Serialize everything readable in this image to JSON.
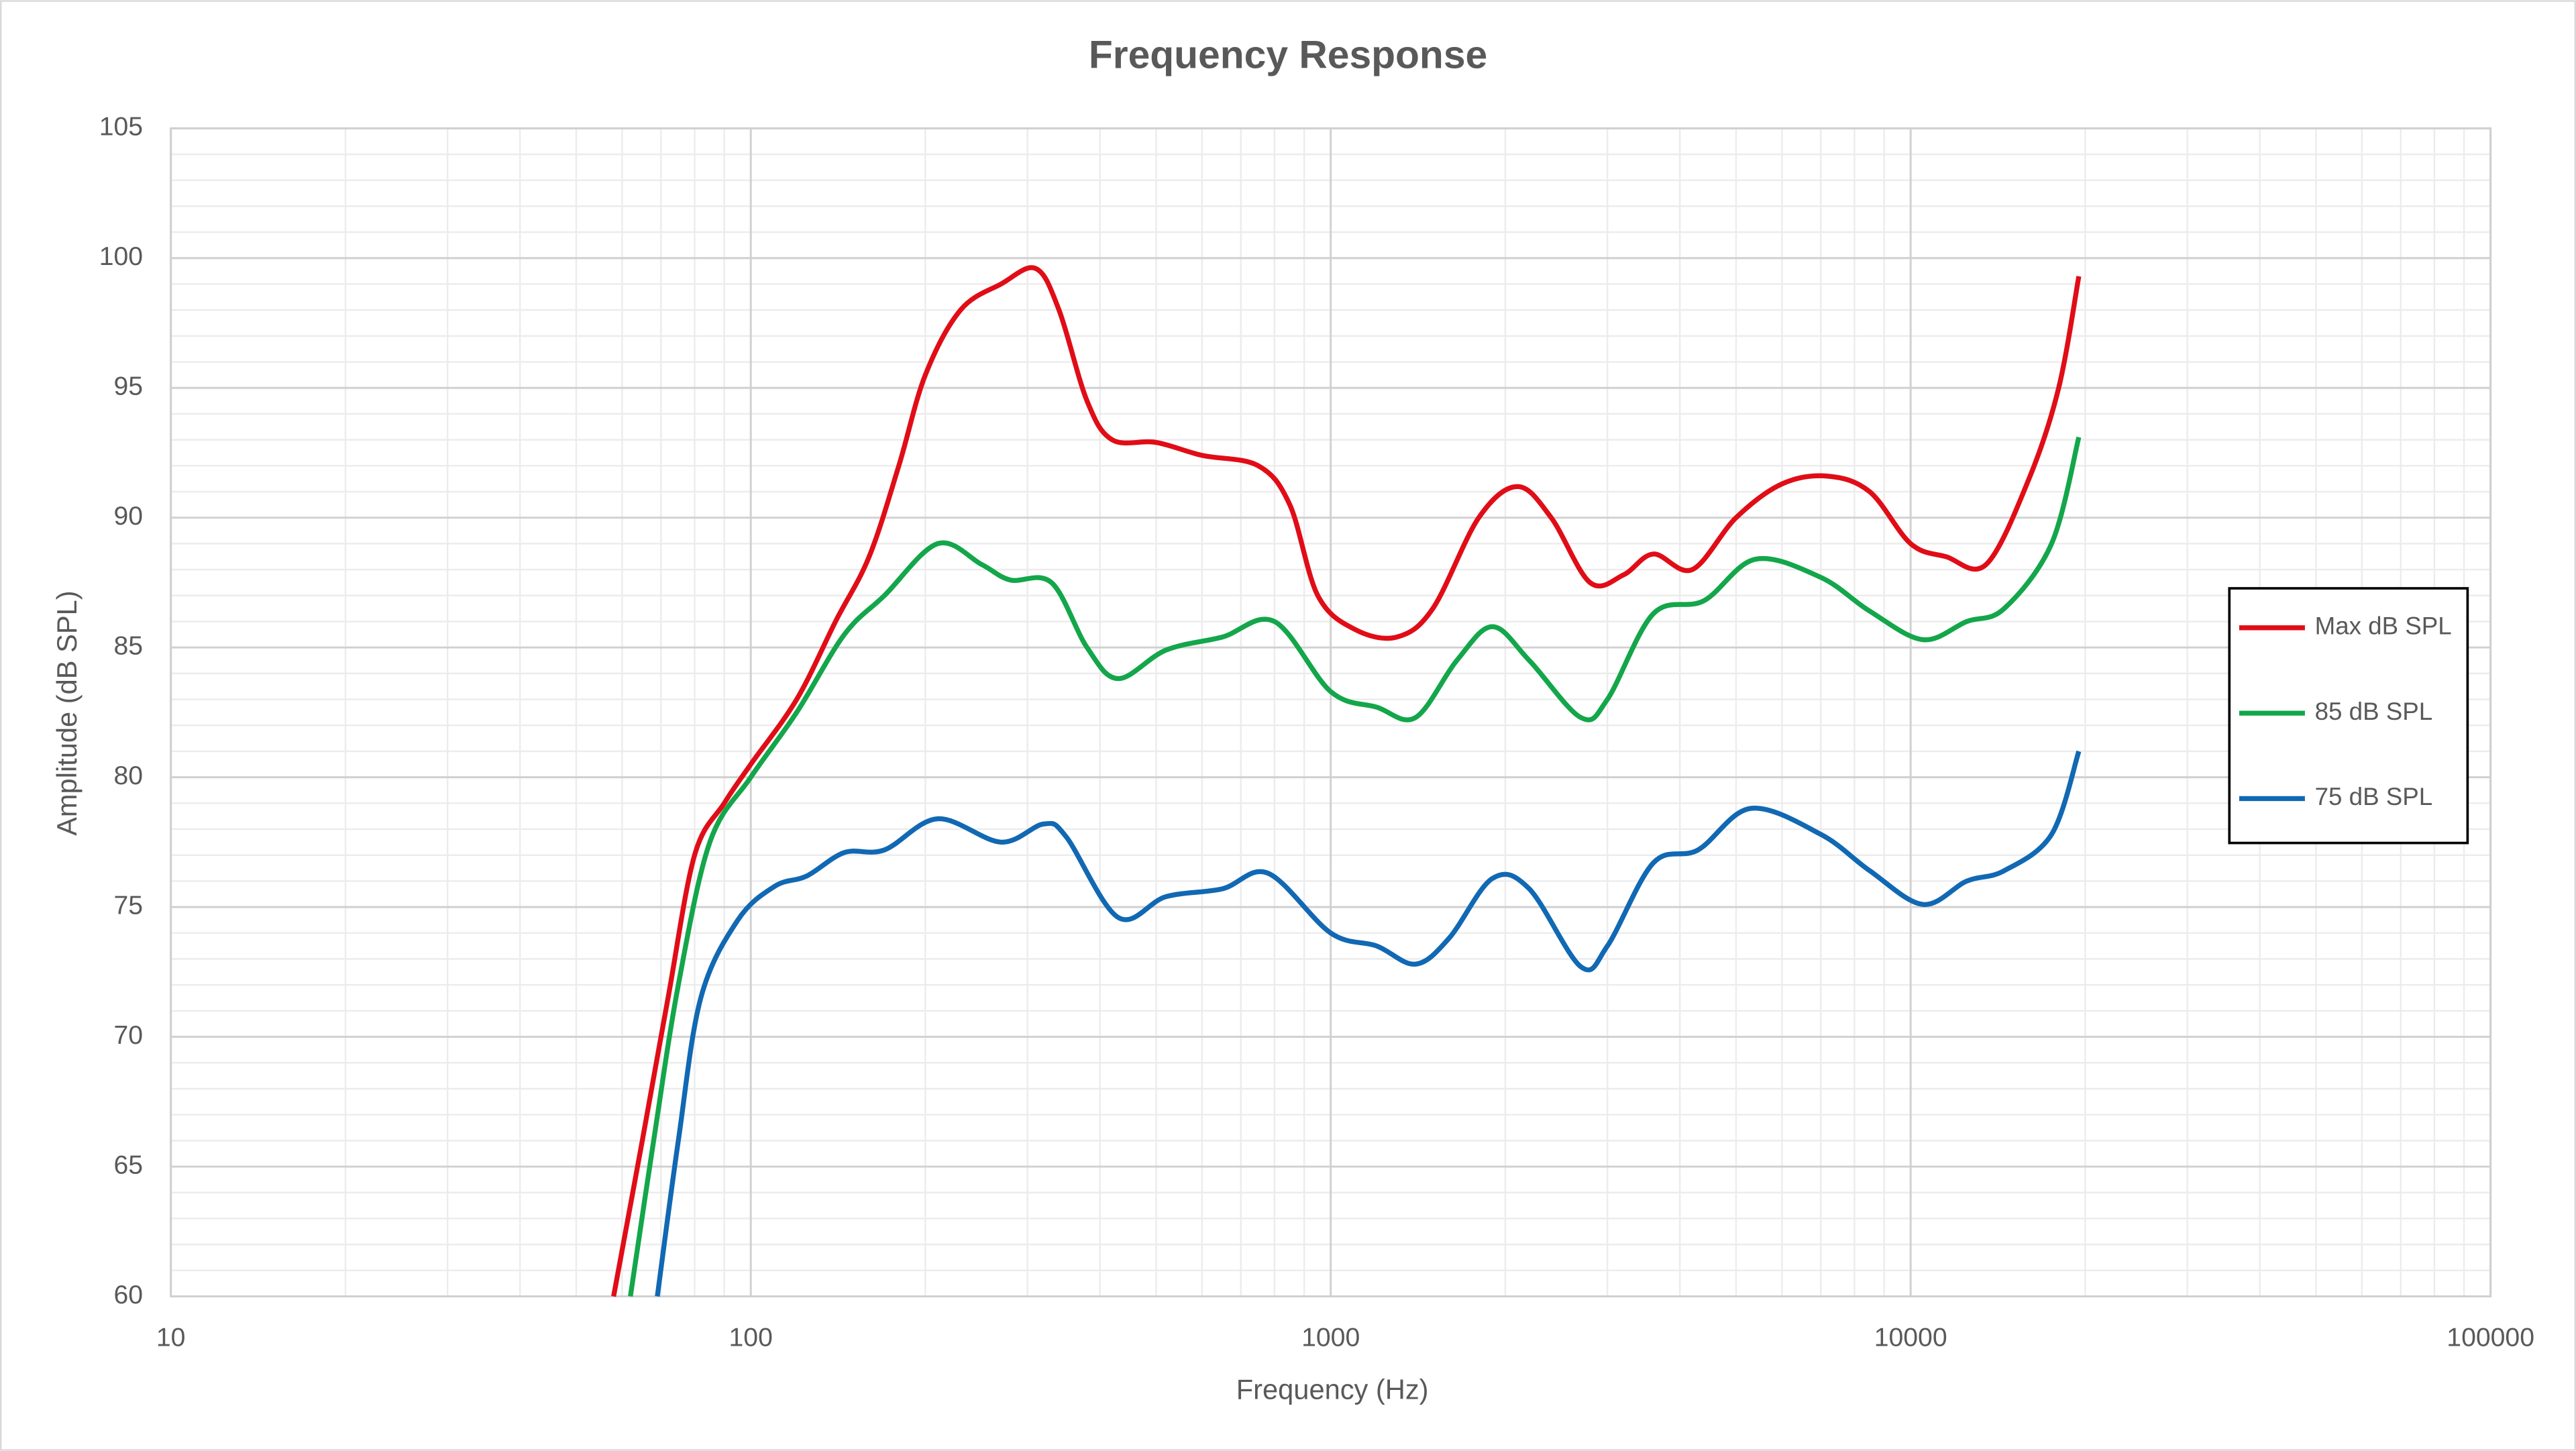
{
  "chart_data": {
    "type": "line",
    "title": "Frequency Response",
    "x_label": "Frequency (Hz)",
    "y_label": "Amplitude (dB SPL)",
    "x_scale": "log",
    "xlim": [
      10,
      100000
    ],
    "xticks": [
      10,
      100,
      1000,
      10000,
      100000
    ],
    "ylim": [
      60,
      105
    ],
    "yticks": [
      60,
      65,
      70,
      75,
      80,
      85,
      90,
      95,
      100,
      105
    ],
    "grid": true,
    "minor_grid": true,
    "legend": "right",
    "series": [
      {
        "name": "Max dB SPL",
        "color": "#e00d17",
        "x": [
          58,
          65,
          72,
          80,
          90,
          100,
          120,
          140,
          160,
          180,
          200,
          230,
          270,
          310,
          340,
          380,
          420,
          500,
          600,
          750,
          850,
          950,
          1100,
          1300,
          1500,
          1800,
          2100,
          2400,
          2800,
          3200,
          3600,
          4200,
          5000,
          6000,
          7200,
          8500,
          10000,
          11500,
          13500,
          16000,
          18000,
          19500
        ],
        "values": [
          60,
          66,
          71.5,
          77,
          79,
          80.5,
          83,
          86,
          88.5,
          92,
          95.5,
          98,
          99,
          99.6,
          98,
          94.5,
          93,
          92.9,
          92.4,
          92,
          90.5,
          87,
          85.7,
          85.4,
          86.5,
          90,
          91.2,
          90,
          87.5,
          87.8,
          88.6,
          88,
          90,
          91.3,
          91.6,
          91,
          89,
          88.5,
          88.2,
          91.5,
          95,
          99.3
        ]
      },
      {
        "name": "85 dB SPL",
        "color": "#13a64a",
        "x": [
          62,
          68,
          75,
          85,
          100,
          120,
          145,
          170,
          210,
          250,
          280,
          330,
          380,
          430,
          520,
          650,
          800,
          1000,
          1200,
          1400,
          1650,
          1900,
          2200,
          2700,
          3000,
          3600,
          4400,
          5400,
          7000,
          8500,
          10500,
          12500,
          14500,
          17500,
          19500
        ],
        "values": [
          60,
          66,
          72,
          77.5,
          80,
          82.5,
          85.5,
          87,
          89,
          88.2,
          87.6,
          87.5,
          85,
          83.8,
          84.9,
          85.4,
          86,
          83.3,
          82.7,
          82.3,
          84.5,
          85.8,
          84.5,
          82.3,
          83,
          86.3,
          86.8,
          88.4,
          87.7,
          86.4,
          85.3,
          86,
          86.5,
          89,
          93.1
        ]
      },
      {
        "name": "75 dB SPL",
        "color": "#1168b3",
        "x": [
          69,
          75,
          82,
          95,
          110,
          125,
          145,
          170,
          210,
          270,
          320,
          350,
          430,
          520,
          650,
          780,
          1000,
          1200,
          1400,
          1600,
          1900,
          2200,
          2700,
          3000,
          3600,
          4300,
          5300,
          7000,
          8500,
          10500,
          12500,
          14500,
          17500,
          19500
        ],
        "values": [
          60,
          66,
          71.5,
          74.5,
          75.8,
          76.2,
          77.1,
          77.2,
          78.4,
          77.5,
          78.2,
          77.7,
          74.6,
          75.4,
          75.7,
          76.3,
          74,
          73.5,
          72.8,
          73.8,
          76.1,
          75.7,
          72.7,
          73.5,
          76.7,
          77.2,
          78.8,
          77.8,
          76.4,
          75.1,
          76,
          76.4,
          77.8,
          81
        ]
      }
    ]
  }
}
